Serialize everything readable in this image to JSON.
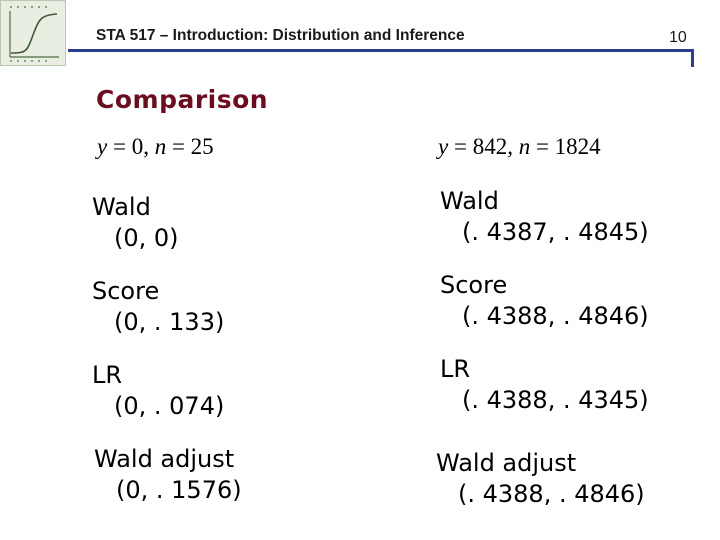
{
  "header": {
    "title": "STA 517 – Introduction: Distribution and Inference",
    "page_number": "10",
    "logo_icon": "sigmoid-curve-logo-icon"
  },
  "section_title": "Comparison",
  "columns": [
    {
      "formula": {
        "y_var": "y",
        "y_eq": " = 0, ",
        "n_var": "n",
        "n_eq": " = 25"
      },
      "items": [
        {
          "label": "Wald",
          "value": "(0, 0)"
        },
        {
          "label": "Score",
          "value": "(0, . 133)"
        },
        {
          "label": "LR",
          "value": "(0, . 074)"
        },
        {
          "label": "Wald adjust",
          "value": "(0, . 1576)"
        }
      ]
    },
    {
      "formula": {
        "y_var": "y",
        "y_eq": " = 842, ",
        "n_var": "n",
        "n_eq": " = 1824"
      },
      "items": [
        {
          "label": "Wald",
          "value": "(. 4387, . 4845)"
        },
        {
          "label": "Score",
          "value": "(. 4388, . 4846)"
        },
        {
          "label": "LR",
          "value": "(. 4388, . 4345)"
        },
        {
          "label": "Wald adjust",
          "value": "(. 4388, . 4846)"
        }
      ]
    }
  ],
  "colors": {
    "rule": "#2b3d8e",
    "section_title": "#6b0d1e"
  }
}
